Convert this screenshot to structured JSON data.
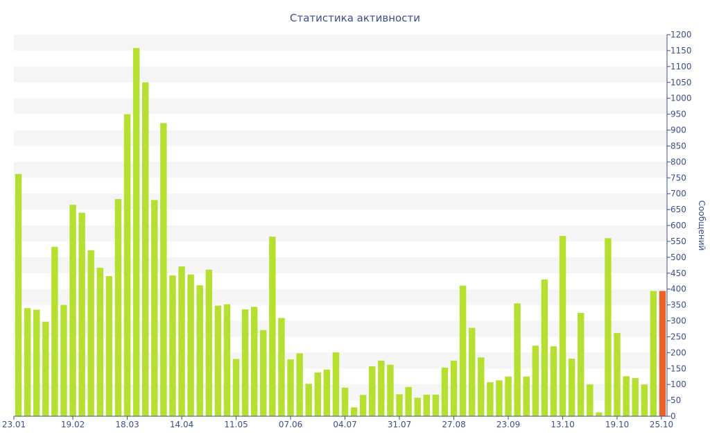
{
  "chart_data": {
    "type": "bar",
    "title": "Статистика активности",
    "ylabel": "Сообщений",
    "xlabel": "",
    "ylim": [
      0,
      1200
    ],
    "y_tick_step": 50,
    "y_axis_side": "right",
    "grid": true,
    "x_tick_labels": [
      {
        "index": 0,
        "label": "23.01"
      },
      {
        "index": 6,
        "label": "19.02"
      },
      {
        "index": 12,
        "label": "18.03"
      },
      {
        "index": 18,
        "label": "14.04"
      },
      {
        "index": 24,
        "label": "11.05"
      },
      {
        "index": 30,
        "label": "07.06"
      },
      {
        "index": 36,
        "label": "04.07"
      },
      {
        "index": 42,
        "label": "31.07"
      },
      {
        "index": 48,
        "label": "27.08"
      },
      {
        "index": 54,
        "label": "23.09"
      },
      {
        "index": 60,
        "label": "13.10"
      },
      {
        "index": 66,
        "label": "19.10"
      },
      {
        "index": 72,
        "label": "25.10"
      }
    ],
    "values": [
      762,
      340,
      335,
      297,
      533,
      350,
      665,
      640,
      522,
      467,
      441,
      683,
      950,
      1158,
      1050,
      680,
      922,
      443,
      471,
      446,
      412,
      461,
      348,
      352,
      180,
      336,
      344,
      271,
      565,
      309,
      179,
      198,
      102,
      138,
      147,
      201,
      90,
      28,
      67,
      157,
      175,
      162,
      69,
      92,
      58,
      68,
      68,
      153,
      175,
      411,
      278,
      185,
      107,
      113,
      125,
      355,
      125,
      222,
      430,
      220,
      567,
      181,
      325,
      100,
      12,
      560,
      262,
      126,
      120,
      100,
      394,
      394
    ],
    "highlight_last": true,
    "colors": {
      "bar": "#b5e02f",
      "bar_last": "#e8622a",
      "text": "#3a4f8f",
      "axis": "#3a4f8f",
      "band": "#f5f5f5"
    }
  }
}
